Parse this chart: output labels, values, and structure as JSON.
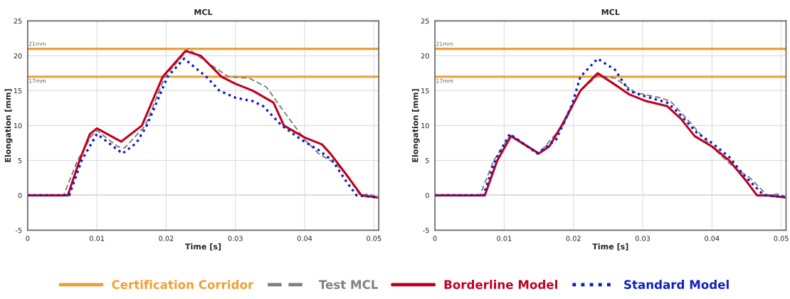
{
  "chart_data": [
    {
      "type": "line",
      "title": "MCL",
      "xlabel": "Time [s]",
      "ylabel": "Elongation [mm]",
      "xlim": [
        0,
        0.0507
      ],
      "ylim": [
        -5,
        25
      ],
      "xticks": [
        0,
        0.01,
        0.02,
        0.03,
        0.04,
        0.05
      ],
      "yticks": [
        -5,
        0,
        5,
        10,
        15,
        20,
        25
      ],
      "grid": true,
      "legend": "bottom",
      "annotations": [
        {
          "text": "21mm",
          "y": 21
        },
        {
          "text": "17mm",
          "y": 17
        }
      ],
      "series": [
        {
          "name": "Certification Corridor",
          "color": "#f0a030",
          "line_style": "solid",
          "x": [
            0,
            0.0507
          ],
          "values": [
            21,
            21
          ]
        },
        {
          "color": "#f0a030",
          "line_style": "solid",
          "x": [
            0,
            0.0507
          ],
          "values": [
            17,
            17
          ]
        },
        {
          "name": "Test MCL",
          "color": "#808080",
          "line_style": "dashed",
          "x": [
            0,
            0.0052,
            0.0072,
            0.0092,
            0.01,
            0.013,
            0.014,
            0.017,
            0.0198,
            0.0232,
            0.026,
            0.029,
            0.032,
            0.0345,
            0.037,
            0.04,
            0.042,
            0.0445,
            0.046,
            0.048,
            0.0493,
            0.0505
          ],
          "values": [
            0,
            0,
            5,
            8.5,
            9.3,
            7,
            6.8,
            10,
            17,
            21,
            19,
            17,
            16.8,
            15.5,
            12,
            8,
            6,
            4.5,
            3,
            0,
            0.2,
            -0.3
          ]
        },
        {
          "name": "Borderline Model",
          "color": "#c00020",
          "line_style": "solid",
          "x": [
            0,
            0.0058,
            0.0075,
            0.009,
            0.01,
            0.0135,
            0.0165,
            0.0195,
            0.0228,
            0.025,
            0.028,
            0.03,
            0.0325,
            0.0355,
            0.037,
            0.04,
            0.0425,
            0.0437,
            0.046,
            0.0482,
            0.0505
          ],
          "values": [
            0,
            0,
            5,
            8.8,
            9.6,
            7.7,
            10,
            17,
            20.7,
            20,
            17,
            16,
            15,
            13.3,
            10,
            8.3,
            7.3,
            6,
            3,
            0,
            -0.3
          ]
        },
        {
          "name": "Standard Model",
          "color": "#1020c0",
          "line_style": "dotted",
          "x": [
            0,
            0.006,
            0.0078,
            0.01,
            0.0137,
            0.0157,
            0.0172,
            0.0202,
            0.0226,
            0.0258,
            0.0277,
            0.03,
            0.0325,
            0.034,
            0.0367,
            0.0395,
            0.042,
            0.044,
            0.046,
            0.0475,
            0.0505
          ],
          "values": [
            0,
            0,
            5,
            8.8,
            6,
            7.5,
            10,
            17,
            19.6,
            17,
            15,
            14,
            13.5,
            12.8,
            10,
            8,
            6.5,
            5,
            2,
            0,
            -0.3
          ]
        }
      ]
    },
    {
      "type": "line",
      "title": "MCL",
      "xlabel": "Time [s]",
      "ylabel": "Elongation [mm]",
      "xlim": [
        0,
        0.0507
      ],
      "ylim": [
        -5,
        25
      ],
      "xticks": [
        0,
        0.01,
        0.02,
        0.03,
        0.04,
        0.05
      ],
      "yticks": [
        -5,
        0,
        5,
        10,
        15,
        20,
        25
      ],
      "grid": true,
      "annotations": [
        {
          "text": "21mm",
          "y": 21
        },
        {
          "text": "17mm",
          "y": 17
        }
      ],
      "series": [
        {
          "color": "#f0a030",
          "line_style": "solid",
          "x": [
            0,
            0.0507
          ],
          "values": [
            21,
            21
          ]
        },
        {
          "color": "#f0a030",
          "line_style": "solid",
          "x": [
            0,
            0.0507
          ],
          "values": [
            17,
            17
          ]
        },
        {
          "color": "#808080",
          "line_style": "dashed",
          "x": [
            0,
            0.0065,
            0.0085,
            0.0108,
            0.015,
            0.0185,
            0.021,
            0.0235,
            0.026,
            0.029,
            0.0325,
            0.034,
            0.0368,
            0.039,
            0.041,
            0.0432,
            0.0455,
            0.048,
            0.0495,
            0.0505
          ],
          "values": [
            0,
            0,
            5,
            8.5,
            6,
            10,
            15,
            17.2,
            16.8,
            14.7,
            14,
            13.5,
            10.5,
            8,
            6,
            4,
            2.5,
            0,
            0.2,
            -0.2
          ]
        },
        {
          "color": "#c00020",
          "line_style": "solid",
          "x": [
            0,
            0.0072,
            0.009,
            0.011,
            0.015,
            0.0165,
            0.0183,
            0.021,
            0.0235,
            0.0258,
            0.028,
            0.0305,
            0.0335,
            0.0355,
            0.0375,
            0.04,
            0.0425,
            0.045,
            0.0465,
            0.048,
            0.0505
          ],
          "values": [
            0,
            0,
            5,
            8.5,
            6,
            7,
            10,
            15,
            17.5,
            16,
            14.5,
            13.5,
            12.8,
            11,
            8.5,
            7,
            5,
            2,
            0,
            0,
            -0.3
          ]
        },
        {
          "color": "#1020c0",
          "line_style": "dotted",
          "x": [
            0,
            0.007,
            0.0087,
            0.0108,
            0.0148,
            0.0175,
            0.0198,
            0.021,
            0.0235,
            0.026,
            0.028,
            0.03,
            0.0335,
            0.035,
            0.0378,
            0.04,
            0.0425,
            0.0445,
            0.0475,
            0.0505
          ],
          "values": [
            0,
            0,
            5,
            8.8,
            6,
            8,
            13,
            17,
            19.6,
            18,
            15,
            14.3,
            13.3,
            12,
            9,
            7.5,
            5.5,
            3,
            0,
            -0.2
          ]
        }
      ]
    }
  ]
}
